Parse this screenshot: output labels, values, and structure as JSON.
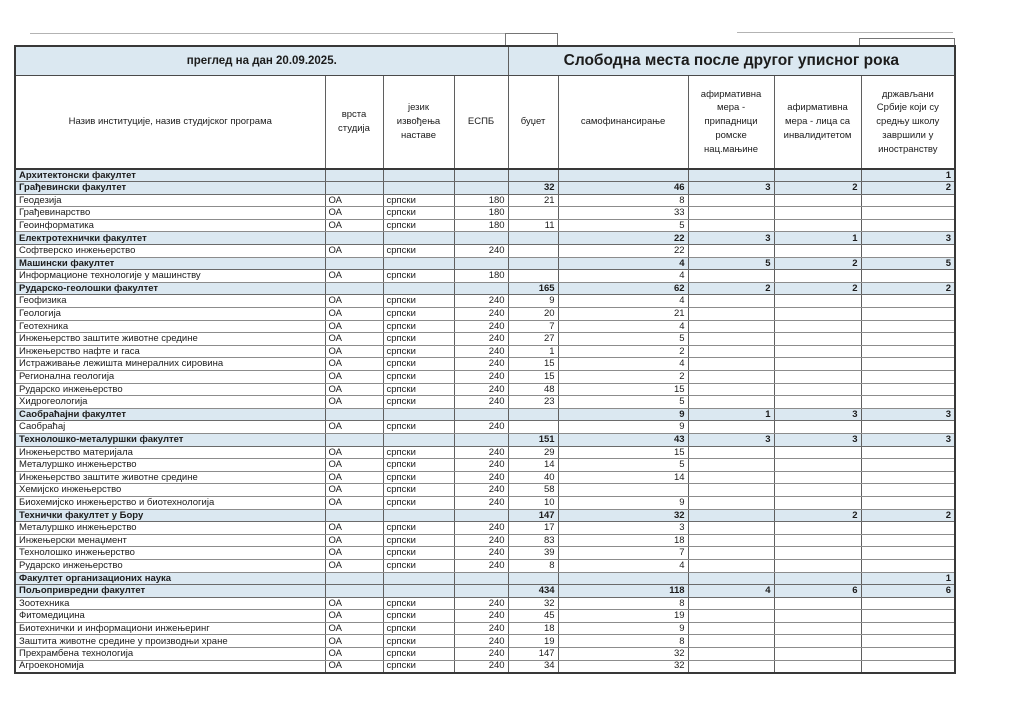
{
  "document": {
    "review_date_label": "преглед на дан 20.09.2025.",
    "title": "Слободна места после другог уписног рока"
  },
  "colors": {
    "band_bg": "#dbe8f1",
    "faculty_row_bg": "#dbe8f1",
    "outer_border": "#383838",
    "grid_border": "#8c8c8c",
    "text": "#1c1c1c"
  },
  "table": {
    "columns": [
      "Назив институције, назив студијског програма",
      "врста студија",
      "језик извођења наставе",
      "ЕСПБ",
      "буџет",
      "самофинансирање",
      "афирмативна мера - припадници ромске нац.мањине",
      "афирмативна мера - лица са инвалидитетом",
      "држављани Србије који су средњу школу завршили у иностранству"
    ],
    "rows": [
      {
        "kind": "faculty",
        "name": "Архитектонски факултет",
        "vrsta": "",
        "jezik": "",
        "espb": "",
        "budzet": "",
        "samo": "",
        "roma": "",
        "invalid": "",
        "ino": "1"
      },
      {
        "kind": "faculty",
        "name": "Грађевински факултет",
        "vrsta": "",
        "jezik": "",
        "espb": "",
        "budzet": "32",
        "samo": "46",
        "roma": "3",
        "invalid": "2",
        "ino": "2"
      },
      {
        "kind": "program",
        "name": "Геодезија",
        "vrsta": "ОА",
        "jezik": "српски",
        "espb": "180",
        "budzet": "21",
        "samo": "8",
        "roma": "",
        "invalid": "",
        "ino": ""
      },
      {
        "kind": "program",
        "name": "Грађевинарство",
        "vrsta": "ОА",
        "jezik": "српски",
        "espb": "180",
        "budzet": "",
        "samo": "33",
        "roma": "",
        "invalid": "",
        "ino": ""
      },
      {
        "kind": "program",
        "name": "Геоинформатика",
        "vrsta": "ОА",
        "jezik": "српски",
        "espb": "180",
        "budzet": "11",
        "samo": "5",
        "roma": "",
        "invalid": "",
        "ino": ""
      },
      {
        "kind": "faculty",
        "name": "Електротехнички факултет",
        "vrsta": "",
        "jezik": "",
        "espb": "",
        "budzet": "",
        "samo": "22",
        "roma": "3",
        "invalid": "1",
        "ino": "3"
      },
      {
        "kind": "program",
        "name": "Софтверско инжењерство",
        "vrsta": "ОА",
        "jezik": "српски",
        "espb": "240",
        "budzet": "",
        "samo": "22",
        "roma": "",
        "invalid": "",
        "ino": ""
      },
      {
        "kind": "faculty",
        "name": "Машински факултет",
        "vrsta": "",
        "jezik": "",
        "espb": "",
        "budzet": "",
        "samo": "4",
        "roma": "5",
        "invalid": "2",
        "ino": "5"
      },
      {
        "kind": "program",
        "name": "Информационе технологије у машинству",
        "vrsta": "ОА",
        "jezik": "српски",
        "espb": "180",
        "budzet": "",
        "samo": "4",
        "roma": "",
        "invalid": "",
        "ino": ""
      },
      {
        "kind": "faculty",
        "name": "Рударско-геолошки факултет",
        "vrsta": "",
        "jezik": "",
        "espb": "",
        "budzet": "165",
        "samo": "62",
        "roma": "2",
        "invalid": "2",
        "ino": "2"
      },
      {
        "kind": "program",
        "name": "Геофизика",
        "vrsta": "ОА",
        "jezik": "српски",
        "espb": "240",
        "budzet": "9",
        "samo": "4",
        "roma": "",
        "invalid": "",
        "ino": ""
      },
      {
        "kind": "program",
        "name": "Геологија",
        "vrsta": "ОА",
        "jezik": "српски",
        "espb": "240",
        "budzet": "20",
        "samo": "21",
        "roma": "",
        "invalid": "",
        "ino": ""
      },
      {
        "kind": "program",
        "name": "Геотехника",
        "vrsta": "ОА",
        "jezik": "српски",
        "espb": "240",
        "budzet": "7",
        "samo": "4",
        "roma": "",
        "invalid": "",
        "ino": ""
      },
      {
        "kind": "program",
        "name": "Инжењерство заштите животне средине",
        "vrsta": "ОА",
        "jezik": "српски",
        "espb": "240",
        "budzet": "27",
        "samo": "5",
        "roma": "",
        "invalid": "",
        "ino": ""
      },
      {
        "kind": "program",
        "name": "Инжењерство нафте и гаса",
        "vrsta": "ОА",
        "jezik": "српски",
        "espb": "240",
        "budzet": "1",
        "samo": "2",
        "roma": "",
        "invalid": "",
        "ino": ""
      },
      {
        "kind": "program",
        "name": "Истраживање лежишта минералних сировина",
        "vrsta": "ОА",
        "jezik": "српски",
        "espb": "240",
        "budzet": "15",
        "samo": "4",
        "roma": "",
        "invalid": "",
        "ino": ""
      },
      {
        "kind": "program",
        "name": "Регионална геологија",
        "vrsta": "ОА",
        "jezik": "српски",
        "espb": "240",
        "budzet": "15",
        "samo": "2",
        "roma": "",
        "invalid": "",
        "ino": ""
      },
      {
        "kind": "program",
        "name": "Рударско инжењерство",
        "vrsta": "ОА",
        "jezik": "српски",
        "espb": "240",
        "budzet": "48",
        "samo": "15",
        "roma": "",
        "invalid": "",
        "ino": ""
      },
      {
        "kind": "program",
        "name": "Хидрогеологија",
        "vrsta": "ОА",
        "jezik": "српски",
        "espb": "240",
        "budzet": "23",
        "samo": "5",
        "roma": "",
        "invalid": "",
        "ino": ""
      },
      {
        "kind": "faculty",
        "name": "Саобраћајни факултет",
        "vrsta": "",
        "jezik": "",
        "espb": "",
        "budzet": "",
        "samo": "9",
        "roma": "1",
        "invalid": "3",
        "ino": "3"
      },
      {
        "kind": "program",
        "name": "Саобраћај",
        "vrsta": "ОА",
        "jezik": "српски",
        "espb": "240",
        "budzet": "",
        "samo": "9",
        "roma": "",
        "invalid": "",
        "ino": ""
      },
      {
        "kind": "faculty",
        "name": "Технолошко-металуршки факултет",
        "vrsta": "",
        "jezik": "",
        "espb": "",
        "budzet": "151",
        "samo": "43",
        "roma": "3",
        "invalid": "3",
        "ino": "3"
      },
      {
        "kind": "program",
        "name": "Инжењерство материјала",
        "vrsta": "ОА",
        "jezik": "српски",
        "espb": "240",
        "budzet": "29",
        "samo": "15",
        "roma": "",
        "invalid": "",
        "ino": ""
      },
      {
        "kind": "program",
        "name": "Металуршко инжењерство",
        "vrsta": "ОА",
        "jezik": "српски",
        "espb": "240",
        "budzet": "14",
        "samo": "5",
        "roma": "",
        "invalid": "",
        "ino": ""
      },
      {
        "kind": "program",
        "name": "Инжењерство заштите животне средине",
        "vrsta": "ОА",
        "jezik": "српски",
        "espb": "240",
        "budzet": "40",
        "samo": "14",
        "roma": "",
        "invalid": "",
        "ino": ""
      },
      {
        "kind": "program",
        "name": "Хемијско инжењерство",
        "vrsta": "ОА",
        "jezik": "српски",
        "espb": "240",
        "budzet": "58",
        "samo": "",
        "roma": "",
        "invalid": "",
        "ino": ""
      },
      {
        "kind": "program",
        "name": "Биохемијско инжењерство и биотехнологија",
        "vrsta": "ОА",
        "jezik": "српски",
        "espb": "240",
        "budzet": "10",
        "samo": "9",
        "roma": "",
        "invalid": "",
        "ino": ""
      },
      {
        "kind": "faculty",
        "name": "Технички факултет у Бору",
        "vrsta": "",
        "jezik": "",
        "espb": "",
        "budzet": "147",
        "samo": "32",
        "roma": "",
        "invalid": "2",
        "ino": "2"
      },
      {
        "kind": "program",
        "name": "Металуршко инжењерство",
        "vrsta": "ОА",
        "jezik": "српски",
        "espb": "240",
        "budzet": "17",
        "samo": "3",
        "roma": "",
        "invalid": "",
        "ino": ""
      },
      {
        "kind": "program",
        "name": "Инжењерски менаџмент",
        "vrsta": "ОА",
        "jezik": "српски",
        "espb": "240",
        "budzet": "83",
        "samo": "18",
        "roma": "",
        "invalid": "",
        "ino": ""
      },
      {
        "kind": "program",
        "name": "Технолошко инжењерство",
        "vrsta": "ОА",
        "jezik": "српски",
        "espb": "240",
        "budzet": "39",
        "samo": "7",
        "roma": "",
        "invalid": "",
        "ino": ""
      },
      {
        "kind": "program",
        "name": "Рударско инжењерство",
        "vrsta": "ОА",
        "jezik": "српски",
        "espb": "240",
        "budzet": "8",
        "samo": "4",
        "roma": "",
        "invalid": "",
        "ino": ""
      },
      {
        "kind": "faculty",
        "name": "Факултет организационих наука",
        "vrsta": "",
        "jezik": "",
        "espb": "",
        "budzet": "",
        "samo": "",
        "roma": "",
        "invalid": "",
        "ino": "1"
      },
      {
        "kind": "faculty",
        "name": "Пољопривредни факултет",
        "vrsta": "",
        "jezik": "",
        "espb": "",
        "budzet": "434",
        "samo": "118",
        "roma": "4",
        "invalid": "6",
        "ino": "6"
      },
      {
        "kind": "program",
        "name": "Зоотехника",
        "vrsta": "ОА",
        "jezik": "српски",
        "espb": "240",
        "budzet": "32",
        "samo": "8",
        "roma": "",
        "invalid": "",
        "ino": ""
      },
      {
        "kind": "program",
        "name": "Фитомедицина",
        "vrsta": "ОА",
        "jezik": "српски",
        "espb": "240",
        "budzet": "45",
        "samo": "19",
        "roma": "",
        "invalid": "",
        "ino": ""
      },
      {
        "kind": "program",
        "name": "Биотехнички и информациони инжењеринг",
        "vrsta": "ОА",
        "jezik": "српски",
        "espb": "240",
        "budzet": "18",
        "samo": "9",
        "roma": "",
        "invalid": "",
        "ino": ""
      },
      {
        "kind": "program",
        "name": "Заштита животне средине у производњи хране",
        "vrsta": "ОА",
        "jezik": "српски",
        "espb": "240",
        "budzet": "19",
        "samo": "8",
        "roma": "",
        "invalid": "",
        "ino": ""
      },
      {
        "kind": "program",
        "name": "Прехрамбена технологија",
        "vrsta": "ОА",
        "jezik": "српски",
        "espb": "240",
        "budzet": "147",
        "samo": "32",
        "roma": "",
        "invalid": "",
        "ino": ""
      },
      {
        "kind": "program",
        "name": "Агроекономија",
        "vrsta": "ОА",
        "jezik": "српски",
        "espb": "240",
        "budzet": "34",
        "samo": "32",
        "roma": "",
        "invalid": "",
        "ino": ""
      }
    ]
  }
}
